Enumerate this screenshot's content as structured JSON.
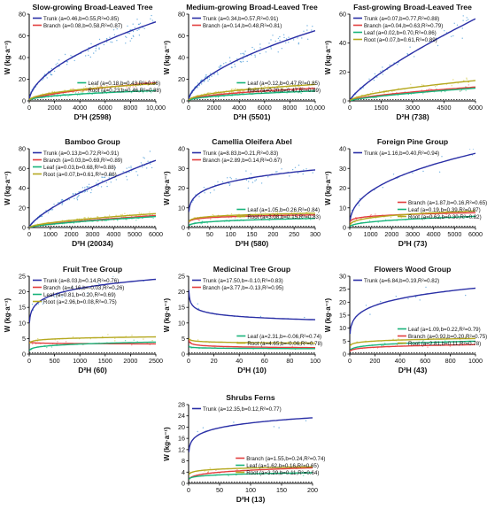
{
  "figure": {
    "w_label": "W (kg·a⁻¹)",
    "x_label": "D²H",
    "colors": {
      "trunk": "#2a2fa6",
      "branch": "#e23d3d",
      "leaf": "#17b37a",
      "root": "#b5a81e",
      "scatter_trunk": "#4a9bd8",
      "scatter_branch": "#f07a7a",
      "scatter_leaf": "#4fd6a0",
      "scatter_root": "#d6cf5a"
    }
  },
  "chart_data": [
    {
      "type": "scatter",
      "title": "Slow-growing Broad-Leaved Tree",
      "n": "2598",
      "xlim": [
        0,
        10000
      ],
      "ylim": [
        0,
        80
      ],
      "xticks": [
        "0",
        "2000",
        "4000",
        "6000",
        "8000",
        "10,000"
      ],
      "yticks": [
        "0",
        "20",
        "40",
        "60",
        "80"
      ],
      "series": [
        {
          "name": "Trunk (a=0.46,b=0.55,R²=0.85)",
          "part": "trunk",
          "a": 0.46,
          "b": 0.55
        },
        {
          "name": "Branch (a=0.08,b=0.58,R²=0.87)",
          "part": "branch",
          "a": 0.08,
          "b": 0.58
        },
        {
          "name": "Leaf (a=0.18,b=0.43,R²=0.86)",
          "part": "leaf",
          "a": 0.18,
          "b": 0.43
        },
        {
          "name": "Root (a=0.23,b=0.46,R²=0.88)",
          "part": "root",
          "a": 0.23,
          "b": 0.46
        }
      ]
    },
    {
      "type": "scatter",
      "title": "Medium-growing Broad-Leaved Tree",
      "n": "5501",
      "xlim": [
        0,
        10000
      ],
      "ylim": [
        0,
        80
      ],
      "xticks": [
        "0",
        "2000",
        "4000",
        "6000",
        "8000",
        "10,000"
      ],
      "yticks": [
        "0",
        "20",
        "40",
        "60",
        "80"
      ],
      "series": [
        {
          "name": "Trunk (a=0.34,b=0.57,R²=0.91)",
          "part": "trunk",
          "a": 0.34,
          "b": 0.57
        },
        {
          "name": "Branch (a=0.14,b=0.48,R²=0.81)",
          "part": "branch",
          "a": 0.14,
          "b": 0.48
        },
        {
          "name": "Leaf (a=0.12,b=0.47,R²=0.85)",
          "part": "leaf",
          "a": 0.12,
          "b": 0.47
        },
        {
          "name": "Root (a=0.20,b=0.47,R²=0.89)",
          "part": "root",
          "a": 0.2,
          "b": 0.47
        }
      ]
    },
    {
      "type": "scatter",
      "title": "Fast-growing Broad-Leaved Tree",
      "n": "738",
      "xlim": [
        0,
        6000
      ],
      "ylim": [
        0,
        60
      ],
      "xticks": [
        "0",
        "1500",
        "3000",
        "4500",
        "6000"
      ],
      "yticks": [
        "0",
        "20",
        "40",
        "60"
      ],
      "series": [
        {
          "name": "Trunk (a=0.07,b=0.77,R²=0.88)",
          "part": "trunk",
          "a": 0.07,
          "b": 0.77
        },
        {
          "name": "Branch (a=0.04,b=0.63,R²=0.79)",
          "part": "branch",
          "a": 0.04,
          "b": 0.63
        },
        {
          "name": "Leaf (a=0.02,b=0.70,R²=0.86)",
          "part": "leaf",
          "a": 0.02,
          "b": 0.7
        },
        {
          "name": "Root (a=0.07,b=0.61,R²=0.89)",
          "part": "root",
          "a": 0.07,
          "b": 0.61
        }
      ]
    },
    {
      "type": "scatter",
      "title": "Bamboo Group",
      "n": "20034",
      "xlim": [
        0,
        6000
      ],
      "ylim": [
        0,
        80
      ],
      "xticks": [
        "0",
        "1000",
        "2000",
        "3000",
        "4000",
        "5000",
        "6000"
      ],
      "yticks": [
        "0",
        "20",
        "40",
        "60",
        "80"
      ],
      "series": [
        {
          "name": "Trunk (a=0.13,b=0.72,R²=0.91)",
          "part": "trunk",
          "a": 0.13,
          "b": 0.72
        },
        {
          "name": "Branch (a=0.03,b=0.69,R²=0.89)",
          "part": "branch",
          "a": 0.03,
          "b": 0.69
        },
        {
          "name": "Leaf (a=0.03,b=0.68,R²=0.88)",
          "part": "leaf",
          "a": 0.03,
          "b": 0.68
        },
        {
          "name": "Root (a=0.07,b=0.61,R²=0.86)",
          "part": "root",
          "a": 0.07,
          "b": 0.61
        }
      ]
    },
    {
      "type": "scatter",
      "title": "Camellia Oleifera Abel",
      "n": "580",
      "xlim": [
        0,
        300
      ],
      "ylim": [
        0,
        40
      ],
      "xticks": [
        "0",
        "50",
        "100",
        "150",
        "200",
        "250",
        "300"
      ],
      "yticks": [
        "0",
        "10",
        "20",
        "30",
        "40"
      ],
      "series": [
        {
          "name": "Trunk (a=8.83,b=0.21,R²=0.83)",
          "part": "trunk",
          "a": 8.83,
          "b": 0.21
        },
        {
          "name": "Branch (a=2.89,b=0.14,R²=0.67)",
          "part": "branch",
          "a": 2.89,
          "b": 0.14
        },
        {
          "name": "Leaf (a=1.05,b=0.26,R²=0.84)",
          "part": "leaf",
          "a": 1.05,
          "b": 0.26
        },
        {
          "name": "Root (a=3.08,b=0.15,R²=0.83)",
          "part": "root",
          "a": 3.08,
          "b": 0.15
        }
      ]
    },
    {
      "type": "scatter",
      "title": "Foreign Pine Group",
      "n": "73",
      "xlim": [
        0,
        6000
      ],
      "ylim": [
        0,
        40
      ],
      "xticks": [
        "0",
        "1000",
        "2000",
        "3000",
        "4000",
        "5000",
        "6000"
      ],
      "yticks": [
        "0",
        "10",
        "20",
        "30",
        "40"
      ],
      "series": [
        {
          "name": "Trunk (a=1.16,b=0.40,R²=0.94)",
          "part": "trunk",
          "a": 1.16,
          "b": 0.4
        },
        {
          "name": "Branch (a=1.87,b=0.16,R²=0.65)",
          "part": "branch",
          "a": 1.87,
          "b": 0.16
        },
        {
          "name": "Leaf (a=0.19,b=0.39,R²=0.87)",
          "part": "leaf",
          "a": 0.19,
          "b": 0.39
        },
        {
          "name": "Root (a=0.62,b=0.30,R²=0.82)",
          "part": "root",
          "a": 0.62,
          "b": 0.3
        }
      ]
    },
    {
      "type": "scatter",
      "title": "Fruit Tree Group",
      "n": "60",
      "xlim": [
        0,
        2500
      ],
      "ylim": [
        0,
        25
      ],
      "xticks": [
        "0",
        "500",
        "1000",
        "1500",
        "2000",
        "2500"
      ],
      "yticks": [
        "0",
        "5",
        "10",
        "15",
        "20",
        "25"
      ],
      "series": [
        {
          "name": "Trunk (a=8.03,b=0.14,R²=0.76)",
          "part": "trunk",
          "a": 8.03,
          "b": 0.14
        },
        {
          "name": "Branch (a=4.16,b=-0.03,R²=0.26)",
          "part": "branch",
          "a": 4.16,
          "b": -0.03
        },
        {
          "name": "Leaf (a=0.81,b=0.20,R²=0.69)",
          "part": "leaf",
          "a": 0.81,
          "b": 0.2
        },
        {
          "name": "Root (a=2.96,b=0.08,R²=0.75)",
          "part": "root",
          "a": 2.96,
          "b": 0.08
        }
      ]
    },
    {
      "type": "scatter",
      "title": "Medicinal Tree Group",
      "n": "10",
      "xlim": [
        0,
        100
      ],
      "ylim": [
        0,
        25
      ],
      "xticks": [
        "0",
        "20",
        "40",
        "60",
        "80",
        "100"
      ],
      "yticks": [
        "0",
        "5",
        "10",
        "15",
        "20",
        "25"
      ],
      "series": [
        {
          "name": "Trunk (a=17.50,b=-0.10,R²=0.83)",
          "part": "trunk",
          "a": 17.5,
          "b": -0.1
        },
        {
          "name": "Branch (a=3.77,b=-0.13,R²=0.95)",
          "part": "branch",
          "a": 3.77,
          "b": -0.13
        },
        {
          "name": "Leaf (a=2.31,b=-0.06,R²=0.74)",
          "part": "leaf",
          "a": 2.31,
          "b": -0.06
        },
        {
          "name": "Root (a=4.65,b=-0.06,R²=0.78)",
          "part": "root",
          "a": 4.65,
          "b": -0.06
        }
      ]
    },
    {
      "type": "scatter",
      "title": "Flowers Wood Group",
      "n": "43",
      "xlim": [
        0,
        1000
      ],
      "ylim": [
        0,
        30
      ],
      "xticks": [
        "0",
        "200",
        "400",
        "600",
        "800",
        "1000"
      ],
      "yticks": [
        "0",
        "5",
        "10",
        "15",
        "20",
        "25",
        "30"
      ],
      "series": [
        {
          "name": "Trunk (a=6.84,b=0.19,R²=0.82)",
          "part": "trunk",
          "a": 6.84,
          "b": 0.19
        },
        {
          "name": "Leaf (a=1.09,b=0.22,R²=0.79)",
          "part": "leaf",
          "a": 1.09,
          "b": 0.22
        },
        {
          "name": "Branch (a=0.92,b=0.20,R²=0.75)",
          "part": "branch",
          "a": 0.92,
          "b": 0.2
        },
        {
          "name": "Root (a=2.81,b=0.11,R²=0.78)",
          "part": "root",
          "a": 2.81,
          "b": 0.11
        }
      ]
    },
    {
      "type": "scatter",
      "title": "Shrubs Ferns",
      "n": "13",
      "xlim": [
        0,
        200
      ],
      "ylim": [
        0,
        28
      ],
      "xticks": [
        "0",
        "50",
        "100",
        "150",
        "200"
      ],
      "yticks": [
        "0",
        "4",
        "8",
        "12",
        "16",
        "20",
        "24",
        "28"
      ],
      "series": [
        {
          "name": "Trunk (a=12.35,b=0.12,R²=0.77)",
          "part": "trunk",
          "a": 12.35,
          "b": 0.12
        },
        {
          "name": "Branch (a=1.55,b=0.24,R²=0.74)",
          "part": "branch",
          "a": 1.55,
          "b": 0.24
        },
        {
          "name": "Leaf (a=1.62,b=0.16,R²=0.65)",
          "part": "leaf",
          "a": 1.62,
          "b": 0.16
        },
        {
          "name": "Root (a=3.29,b=0.11,R²=0.64)",
          "part": "root",
          "a": 3.29,
          "b": 0.11
        }
      ]
    }
  ]
}
